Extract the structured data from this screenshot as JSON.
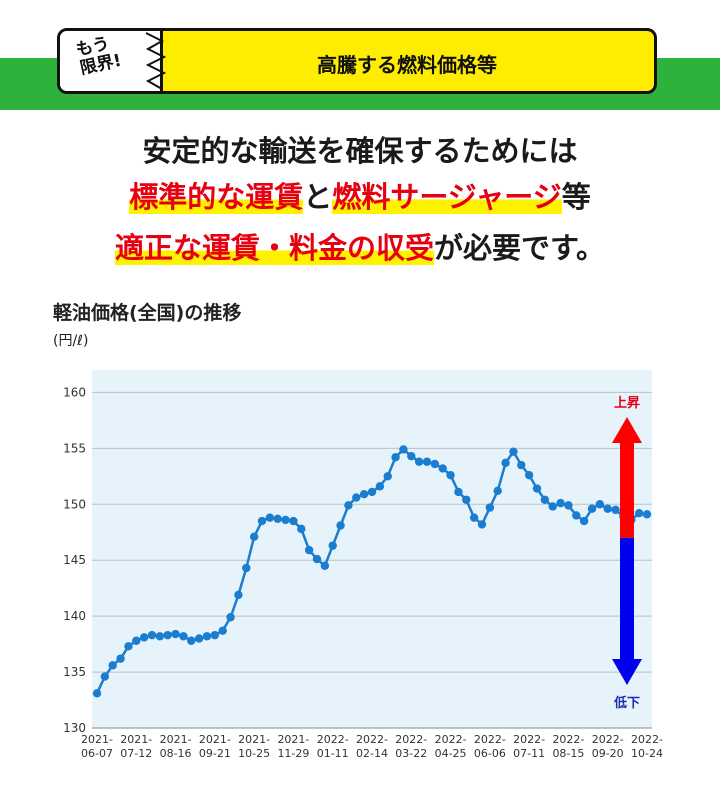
{
  "banner": {
    "sticker_line1": "もう",
    "sticker_line2": "限界!",
    "title": "高騰する燃料価格等"
  },
  "headline": {
    "line1": "安定的な輸送を確保するためには",
    "line2_red1": "標準的な運賃",
    "line2_mid": "と",
    "line2_red2": "燃料サージャージ",
    "line2_end": "等",
    "line3_red": "適正な運賃・料金の収受",
    "line3_end": "が必要です。"
  },
  "chart_title": "軽油価格(全国)の推移",
  "chart_unit": "(円/ℓ)",
  "colors": {
    "plot_bg": "#e6f3fb",
    "line": "#1a7dd0",
    "up": "#ff0000",
    "down": "#0000ee",
    "green": "#2db33b",
    "yellow": "#ffed00"
  },
  "chart_data": {
    "type": "line",
    "title": "軽油価格(全国)の推移",
    "ylabel": "(円/ℓ)",
    "ylim": [
      130,
      162
    ],
    "yticks": [
      130,
      135,
      140,
      145,
      150,
      155,
      160
    ],
    "xtick_labels": [
      [
        "2021-",
        "06-07"
      ],
      [
        "2021-",
        "07-12"
      ],
      [
        "2021-",
        "08-16"
      ],
      [
        "2021-",
        "09-21"
      ],
      [
        "2021-",
        "10-25"
      ],
      [
        "2021-",
        "11-29"
      ],
      [
        "2022-",
        "01-11"
      ],
      [
        "2022-",
        "02-14"
      ],
      [
        "2022-",
        "03-22"
      ],
      [
        "2022-",
        "04-25"
      ],
      [
        "2022-",
        "06-06"
      ],
      [
        "2022-",
        "07-11"
      ],
      [
        "2022-",
        "08-15"
      ],
      [
        "2022-",
        "09-20"
      ],
      [
        "2022-",
        "10-24"
      ]
    ],
    "tick_positions": [
      0,
      5,
      10,
      15,
      20,
      25,
      30,
      35,
      40,
      45,
      50,
      55,
      60,
      65,
      70
    ],
    "values": [
      133.1,
      134.6,
      135.6,
      136.2,
      137.3,
      137.8,
      138.1,
      138.3,
      138.2,
      138.3,
      138.4,
      138.2,
      137.8,
      138.0,
      138.2,
      138.3,
      138.7,
      139.9,
      141.9,
      144.3,
      147.1,
      148.5,
      148.8,
      148.7,
      148.6,
      148.5,
      147.8,
      145.9,
      145.1,
      144.5,
      146.3,
      148.1,
      149.9,
      150.6,
      150.9,
      151.1,
      151.6,
      152.5,
      154.2,
      154.9,
      154.3,
      153.8,
      153.8,
      153.6,
      153.2,
      152.6,
      151.1,
      150.4,
      148.8,
      148.2,
      149.7,
      151.2,
      153.7,
      154.7,
      153.5,
      152.6,
      151.4,
      150.4,
      149.8,
      150.1,
      149.9,
      149.0,
      148.5,
      149.6,
      150.0,
      149.6,
      149.5,
      148.9,
      148.6,
      149.2,
      149.1
    ],
    "annotations": {
      "up_label": "上昇",
      "down_label": "低下",
      "arrow_mid_value": 147.0
    }
  }
}
